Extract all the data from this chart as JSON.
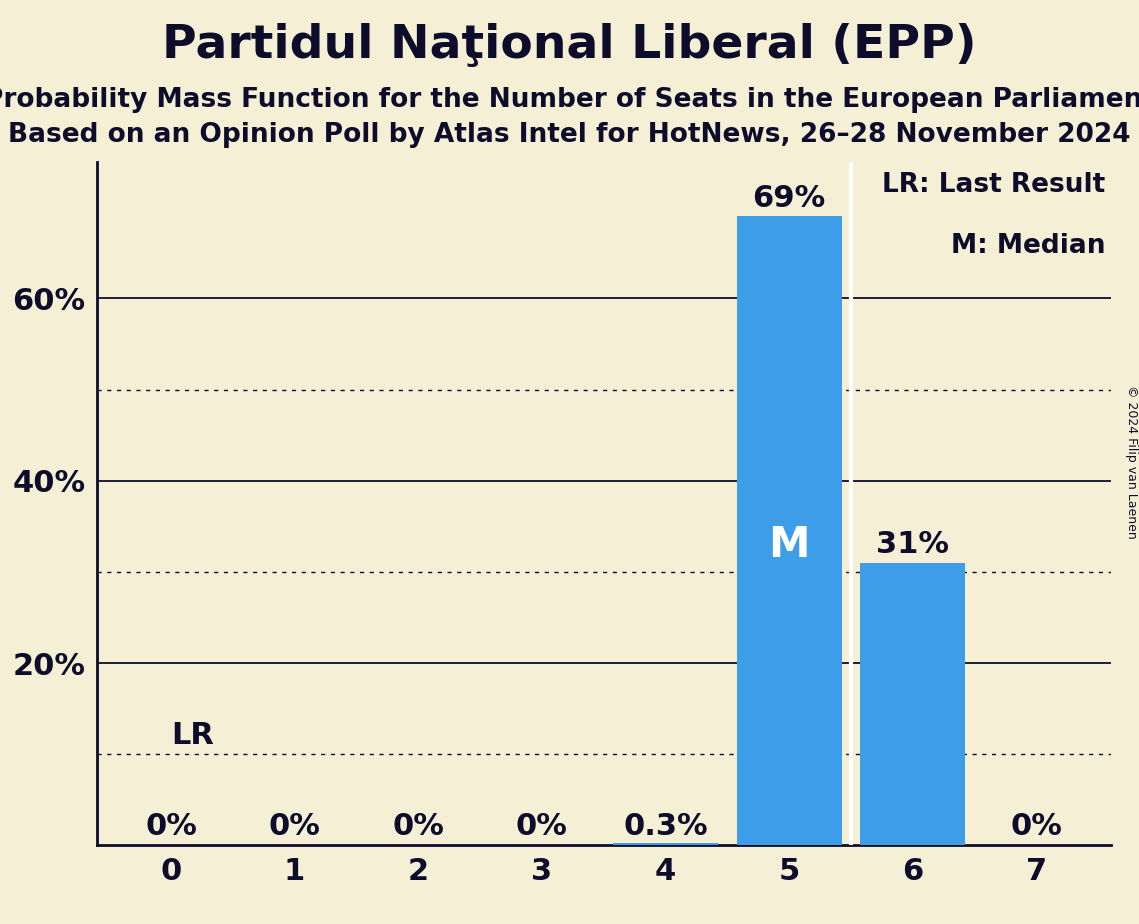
{
  "title": "Partidul Naţional Liberal (EPP)",
  "subtitle1": "Probability Mass Function for the Number of Seats in the European Parliament",
  "subtitle2": "Based on an Opinion Poll by Atlas Intel for HotNews, 26–28 November 2024",
  "copyright": "© 2024 Filip van Laenen",
  "seats": [
    0,
    1,
    2,
    3,
    4,
    5,
    6,
    7
  ],
  "probabilities": [
    0.0,
    0.0,
    0.0,
    0.0,
    0.003,
    0.69,
    0.31,
    0.0
  ],
  "bar_color": "#3d9de8",
  "background_color": "#f5f0d5",
  "text_color": "#0d0d2b",
  "median": 5,
  "last_result": 5,
  "lr_level": 0.1,
  "ylim": [
    0,
    0.75
  ],
  "yticks_solid": [
    0.2,
    0.4,
    0.6
  ],
  "yticks_dotted": [
    0.1,
    0.3,
    0.5
  ],
  "legend_lr": "LR: Last Result",
  "legend_m": "M: Median",
  "title_fontsize": 34,
  "subtitle_fontsize": 19,
  "bar_label_fontsize": 22,
  "axis_fontsize": 22,
  "legend_fontsize": 19
}
